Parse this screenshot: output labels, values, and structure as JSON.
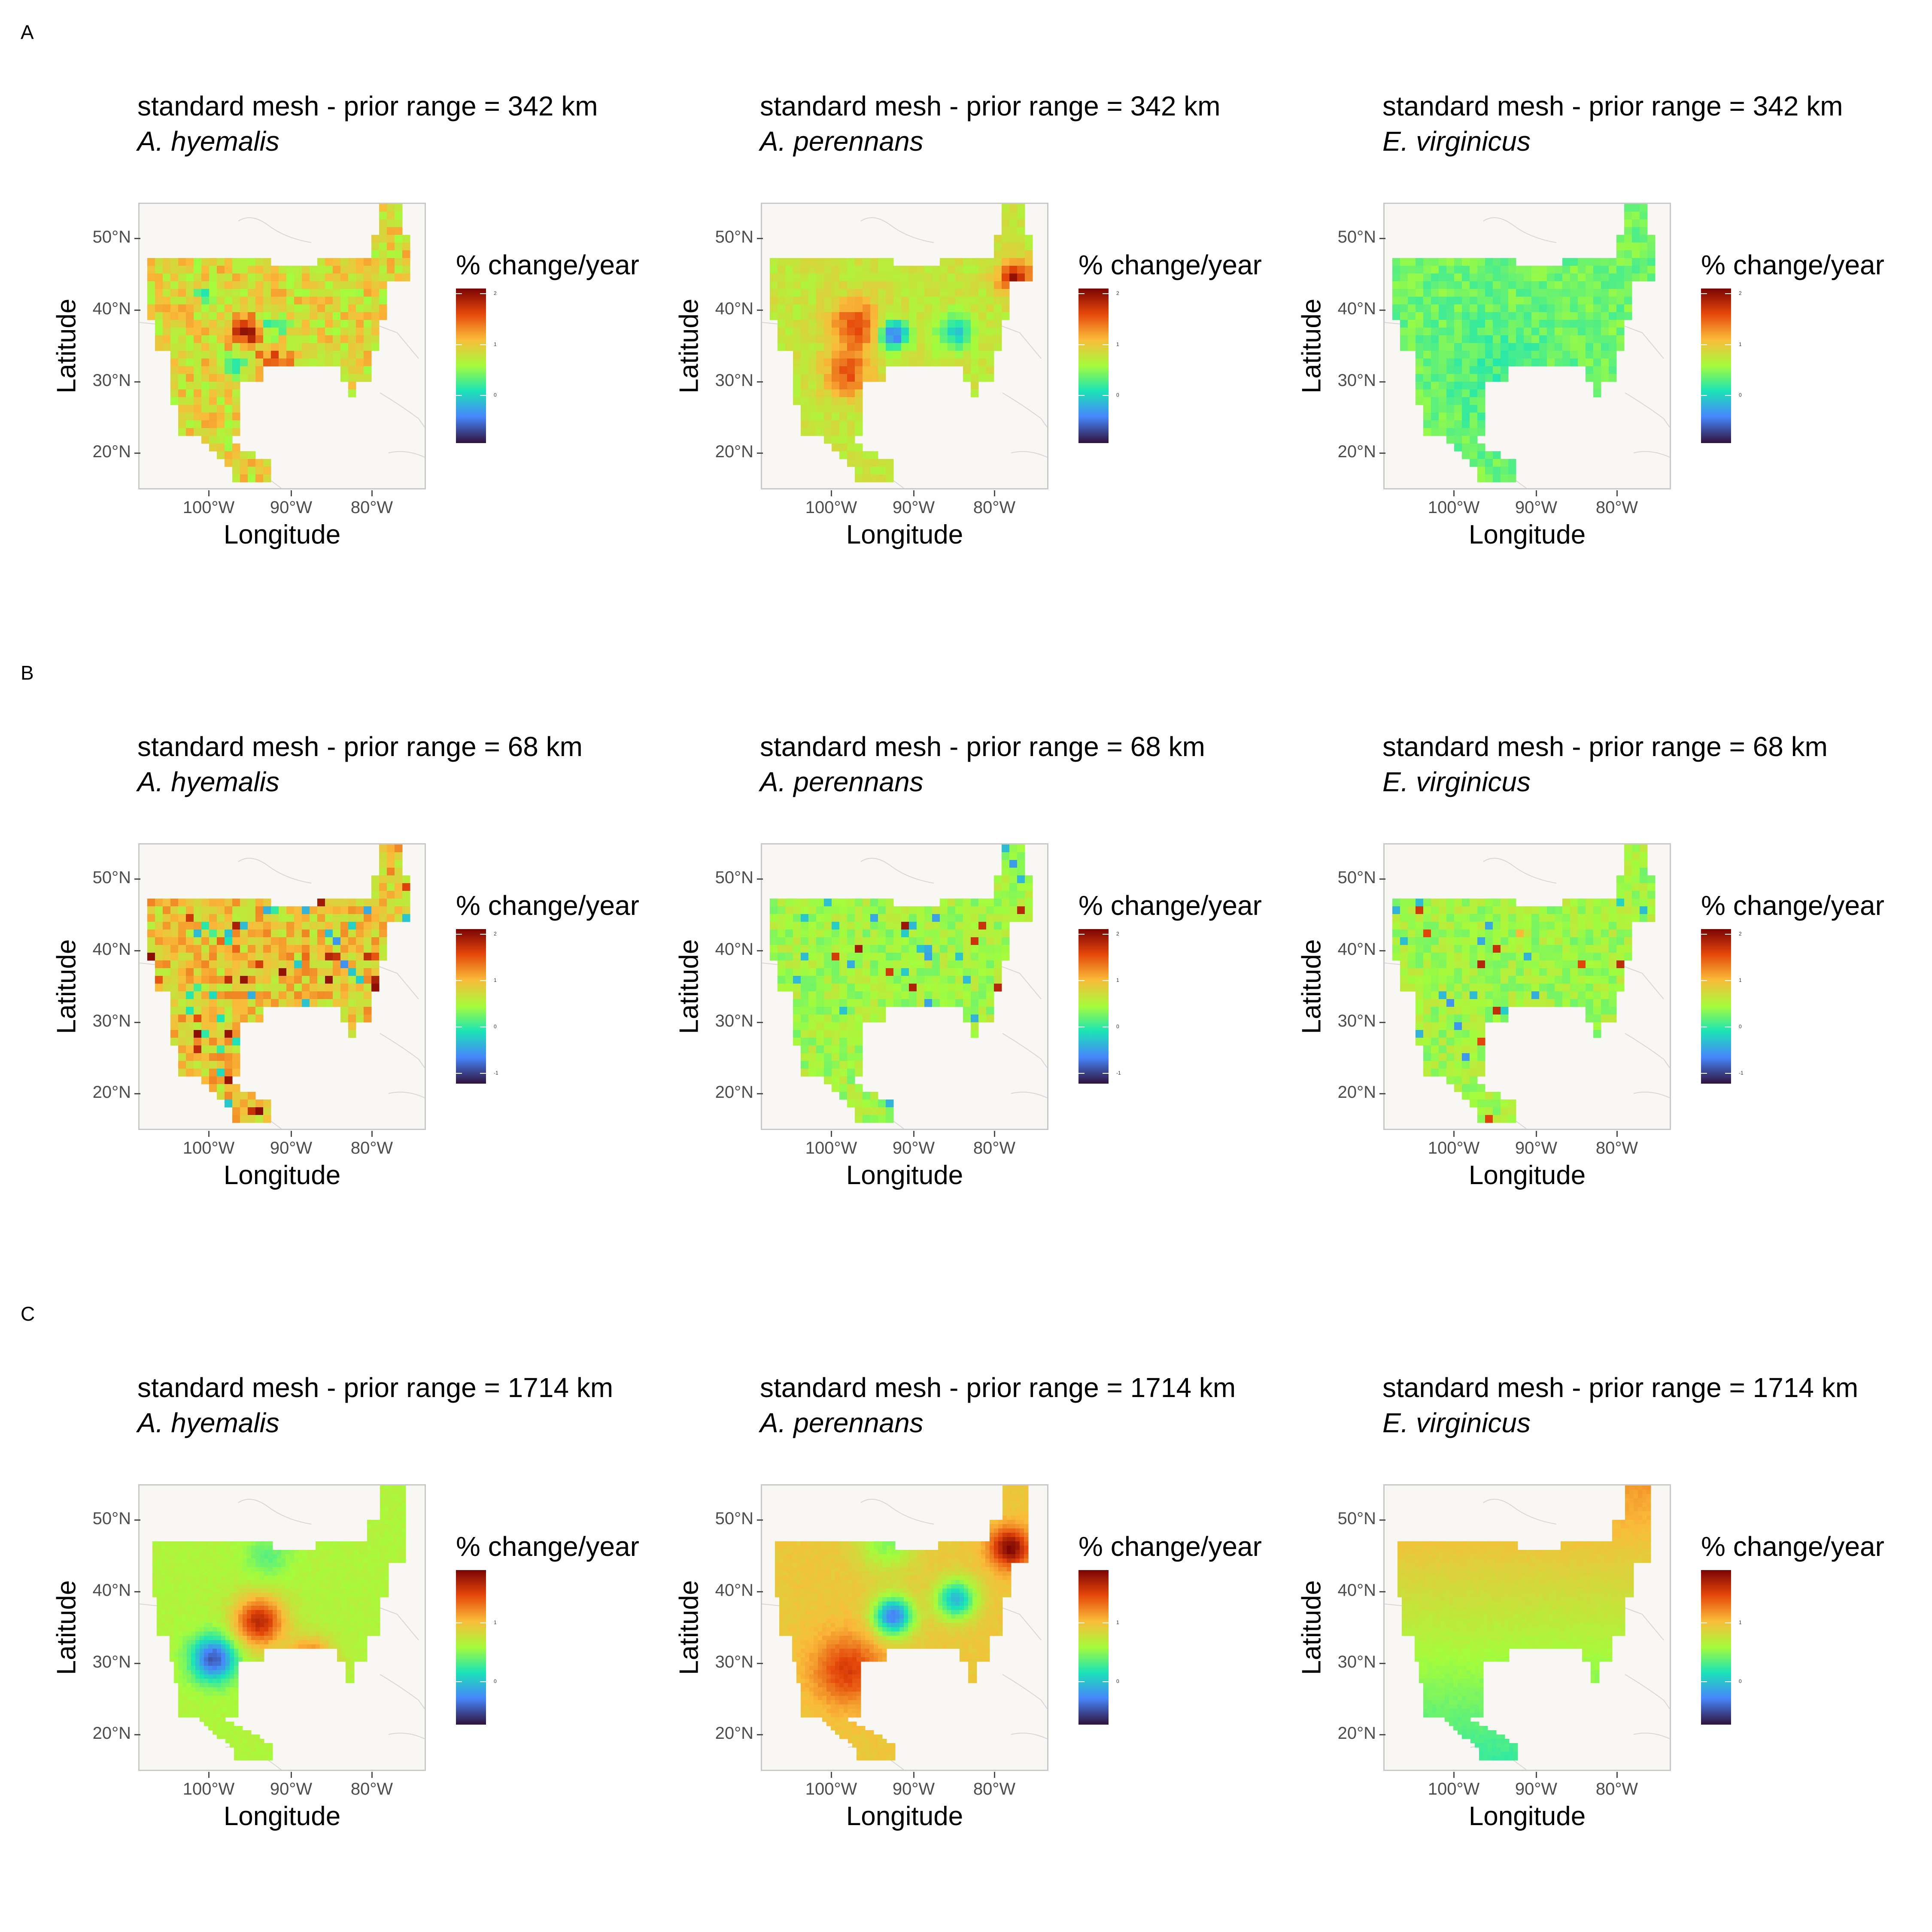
{
  "figure": {
    "rows": [
      {
        "label": "A",
        "panels": [
          {
            "title": "standard mesh - prior range = 342 km",
            "species": "A. hyemalis",
            "pattern": "patchy",
            "lbase": 0.62,
            "lticks": [
              "2",
              "1",
              "0"
            ]
          },
          {
            "title": "standard mesh - prior range = 342 km",
            "species": "A. perennans",
            "pattern": "perennans",
            "lbase": 0.58,
            "lticks": [
              "2",
              "1",
              "0"
            ]
          },
          {
            "title": "standard mesh - prior range = 342 km",
            "species": "E. virginicus",
            "pattern": "flat",
            "lbase": 0.44,
            "lticks": [
              "2",
              "1",
              "0"
            ]
          }
        ]
      },
      {
        "label": "B",
        "panels": [
          {
            "title": "standard mesh - prior range = 68 km",
            "species": "A. hyemalis",
            "pattern": "noisyhigh",
            "lbase": 0.64,
            "lticks": [
              "2",
              "1",
              "0",
              "-1"
            ]
          },
          {
            "title": "standard mesh - prior range = 68 km",
            "species": "A. perennans",
            "pattern": "noisylow",
            "lbase": 0.5,
            "lticks": [
              "2",
              "1",
              "0",
              "-1"
            ]
          },
          {
            "title": "standard mesh - prior range = 68 km",
            "species": "E. virginicus",
            "pattern": "noisylow",
            "lbase": 0.49,
            "lticks": [
              "2",
              "1",
              "0",
              "-1"
            ]
          }
        ]
      },
      {
        "label": "C",
        "panels": [
          {
            "title": "standard mesh - prior range = 1714 km",
            "species": "A. hyemalis",
            "pattern": "smoothhy",
            "lbase": 0.52,
            "lticks": [
              "1",
              "0"
            ]
          },
          {
            "title": "standard mesh - prior range = 1714 km",
            "species": "A. perennans",
            "pattern": "smoothpe",
            "lbase": 0.66,
            "lticks": [
              "1",
              "0"
            ]
          },
          {
            "title": "standard mesh - prior range = 1714 km",
            "species": "E. virginicus",
            "pattern": "gradient",
            "lbase": 0.55,
            "lticks": [
              "1",
              "0"
            ]
          }
        ]
      }
    ],
    "axis": {
      "xlabel": "Longitude",
      "ylabel": "Latitude",
      "xticks": [
        "100°W",
        "90°W",
        "80°W"
      ],
      "yticks": [
        "50°N",
        "40°N",
        "30°N",
        "20°N"
      ]
    },
    "legend_title": "% change/year",
    "colormap": [
      "#30123b",
      "#4686fb",
      "#1be5b5",
      "#a4fc3c",
      "#fabb3a",
      "#e4460a",
      "#7a0403"
    ],
    "background": "#f8f7f4"
  }
}
